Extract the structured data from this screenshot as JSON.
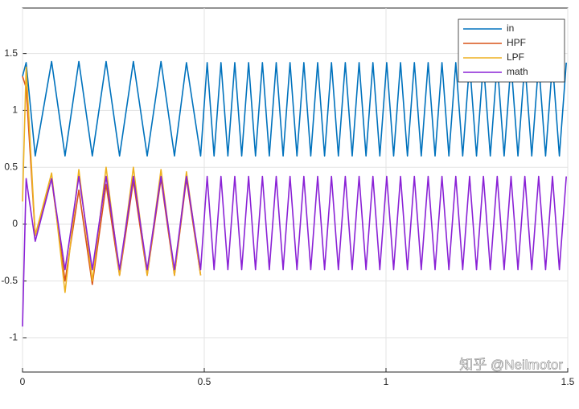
{
  "chart_data": {
    "type": "line",
    "x": [
      0,
      0.01,
      0.035,
      0.08,
      0.117,
      0.155,
      0.192,
      0.23,
      0.267,
      0.305,
      0.343,
      0.381,
      0.418,
      0.451,
      0.49,
      0.508,
      0.527,
      0.546,
      0.565,
      0.584,
      0.603,
      0.622,
      0.641,
      0.66,
      0.679,
      0.698,
      0.717,
      0.736,
      0.755,
      0.774,
      0.793,
      0.812,
      0.831,
      0.85,
      0.869,
      0.888,
      0.907,
      0.926,
      0.945,
      0.964,
      0.983,
      1.002,
      1.021,
      1.04,
      1.059,
      1.078,
      1.097,
      1.116,
      1.135,
      1.154,
      1.173,
      1.192,
      1.211,
      1.23,
      1.249,
      1.268,
      1.287,
      1.306,
      1.325,
      1.344,
      1.363,
      1.382,
      1.401,
      1.42,
      1.439,
      1.458,
      1.477,
      1.496
    ],
    "series": [
      {
        "name": "in",
        "color": "#0072BD",
        "values": [
          1.3,
          1.42,
          0.6,
          1.43,
          0.6,
          1.43,
          0.6,
          1.43,
          0.6,
          1.43,
          0.6,
          1.43,
          0.6,
          1.42,
          0.6,
          1.42,
          0.6,
          1.42,
          0.6,
          1.42,
          0.6,
          1.42,
          0.6,
          1.42,
          0.6,
          1.42,
          0.6,
          1.42,
          0.6,
          1.42,
          0.6,
          1.42,
          0.6,
          1.42,
          0.6,
          1.42,
          0.6,
          1.42,
          0.6,
          1.42,
          0.6,
          1.42,
          0.6,
          1.42,
          0.6,
          1.42,
          0.6,
          1.42,
          0.6,
          1.42,
          0.6,
          1.42,
          0.6,
          1.42,
          0.6,
          1.42,
          0.6,
          1.42,
          0.6,
          1.42,
          0.6,
          1.42,
          0.6,
          1.42,
          0.6,
          1.42,
          0.6,
          1.42
        ]
      },
      {
        "name": "HPF",
        "color": "#D95319",
        "values": [
          1.3,
          1.2,
          -0.1,
          0.4,
          -0.5,
          0.3,
          -0.53,
          0.35,
          -0.45,
          0.38,
          -0.45,
          0.4,
          -0.45,
          0.4,
          -0.45,
          null,
          null,
          null,
          null,
          null,
          null,
          null,
          null,
          null,
          null,
          null,
          null,
          null,
          null,
          null,
          null,
          null,
          null,
          null,
          null,
          null,
          null,
          null,
          null,
          null,
          null,
          null,
          null,
          null,
          null,
          null,
          null,
          null,
          null,
          null,
          null,
          null,
          null,
          null,
          null,
          null,
          null,
          null,
          null,
          null,
          null,
          null,
          null,
          null,
          null,
          null,
          null,
          null
        ]
      },
      {
        "name": "LPF",
        "color": "#EDB120",
        "values": [
          0.2,
          1.38,
          -0.1,
          0.45,
          -0.6,
          0.48,
          -0.5,
          0.5,
          -0.45,
          0.5,
          -0.45,
          0.48,
          -0.45,
          0.46,
          -0.45,
          null,
          null,
          null,
          null,
          null,
          null,
          null,
          null,
          null,
          null,
          null,
          null,
          null,
          null,
          null,
          null,
          null,
          null,
          null,
          null,
          null,
          null,
          null,
          null,
          null,
          null,
          null,
          null,
          null,
          null,
          null,
          null,
          null,
          null,
          null,
          null,
          null,
          null,
          null,
          null,
          null,
          null,
          null,
          null,
          null,
          null,
          null,
          null,
          null,
          null,
          null,
          null,
          null
        ]
      },
      {
        "name": "math",
        "color": "#8A22D6",
        "values": [
          -0.9,
          0.4,
          -0.15,
          0.4,
          -0.4,
          0.42,
          -0.4,
          0.42,
          -0.4,
          0.42,
          -0.4,
          0.42,
          -0.4,
          0.42,
          -0.4,
          0.42,
          -0.4,
          0.42,
          -0.4,
          0.42,
          -0.4,
          0.42,
          -0.4,
          0.42,
          -0.4,
          0.42,
          -0.4,
          0.42,
          -0.4,
          0.42,
          -0.4,
          0.42,
          -0.4,
          0.42,
          -0.4,
          0.42,
          -0.4,
          0.42,
          -0.4,
          0.42,
          -0.4,
          0.42,
          -0.4,
          0.42,
          -0.4,
          0.42,
          -0.4,
          0.42,
          -0.4,
          0.42,
          -0.4,
          0.42,
          -0.4,
          0.42,
          -0.4,
          0.42,
          -0.4,
          0.42,
          -0.4,
          0.42,
          -0.4,
          0.42,
          -0.4,
          0.42,
          -0.4,
          0.42,
          -0.4,
          0.42
        ]
      }
    ],
    "xlim": [
      0,
      1.5
    ],
    "xticks": [
      0,
      0.5,
      1,
      1.5
    ],
    "ylim": [
      -1.3,
      1.9
    ],
    "yticks": [
      -1,
      -0.5,
      0,
      0.5,
      1,
      1.5
    ],
    "grid": true,
    "legend": "top-right",
    "watermark": "知乎 @Neilmotor"
  }
}
